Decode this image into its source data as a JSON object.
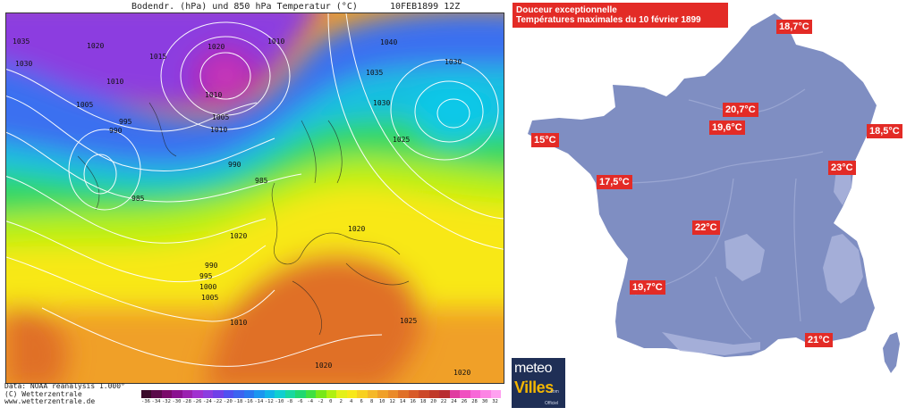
{
  "reanalysis": {
    "title": "Bodendr. (hPa) und 850 hPa Temperatur (°C)",
    "date": "10FEB1899  12Z",
    "credit_lines": [
      "Data: NOAA reanalysis 1.000°",
      "(C) Wetterzentrale",
      "www.wetterzentrale.de"
    ],
    "isobar_labels": [
      "1035",
      "1030",
      "1015",
      "1010",
      "1005",
      "995",
      "990",
      "1020",
      "1010",
      "1020",
      "1010",
      "1005",
      "1010",
      "1040",
      "1035",
      "1030",
      "1030",
      "1025",
      "1020",
      "990",
      "985",
      "985",
      "1020",
      "990",
      "995",
      "1000",
      "1005",
      "1010",
      "1025",
      "1020",
      "1020"
    ],
    "colorbar_ticks": [
      "-36",
      "-34",
      "-32",
      "-30",
      "-28",
      "-26",
      "-24",
      "-22",
      "-20",
      "-18",
      "-16",
      "-14",
      "-12",
      "-10",
      "-8",
      "-6",
      "-4",
      "-2",
      "0",
      "2",
      "4",
      "6",
      "8",
      "10",
      "12",
      "14",
      "16",
      "18",
      "20",
      "22",
      "24",
      "26",
      "28",
      "30",
      "32"
    ],
    "colorbar_colors": [
      "#3a0a2a",
      "#5a0a4a",
      "#7a0a6a",
      "#8a1090",
      "#9a20b0",
      "#a030d0",
      "#8c3ce0",
      "#7040e8",
      "#5050f0",
      "#3c64f0",
      "#2878f0",
      "#1a96f0",
      "#10b4e8",
      "#10cfd0",
      "#18d8a0",
      "#20d870",
      "#40e040",
      "#78e818",
      "#b0f010",
      "#e4f018",
      "#f8e818",
      "#f8d020",
      "#f5b828",
      "#f0a028",
      "#ea8a2a",
      "#e07028",
      "#d85a28",
      "#cc4828",
      "#c03828",
      "#b82c30",
      "#e03ca0",
      "#f050c0",
      "#f868d8",
      "#fc84e4",
      "#ffa0f0"
    ]
  },
  "france": {
    "headline_line1": "Douceur exceptionnelle",
    "headline_line2": "Températures maximales du 10 février 1899",
    "temperatures": [
      {
        "city_value": "18,7°C"
      },
      {
        "city_value": "20,7°C"
      },
      {
        "city_value": "19,6°C"
      },
      {
        "city_value": "15°C"
      },
      {
        "city_value": "18,5°C"
      },
      {
        "city_value": "23°C"
      },
      {
        "city_value": "17,5°C"
      },
      {
        "city_value": "22°C"
      },
      {
        "city_value": "19,7°C"
      },
      {
        "city_value": "21°C"
      }
    ],
    "logo": {
      "line1": "meteo",
      "line2": "Villes",
      "line3": ".com",
      "line4": "Officiel"
    },
    "colors": {
      "land": "#7f8ec2",
      "river": "#9aa6d2",
      "relief": "#aab4dc",
      "label_bg": "#e32b26"
    }
  }
}
